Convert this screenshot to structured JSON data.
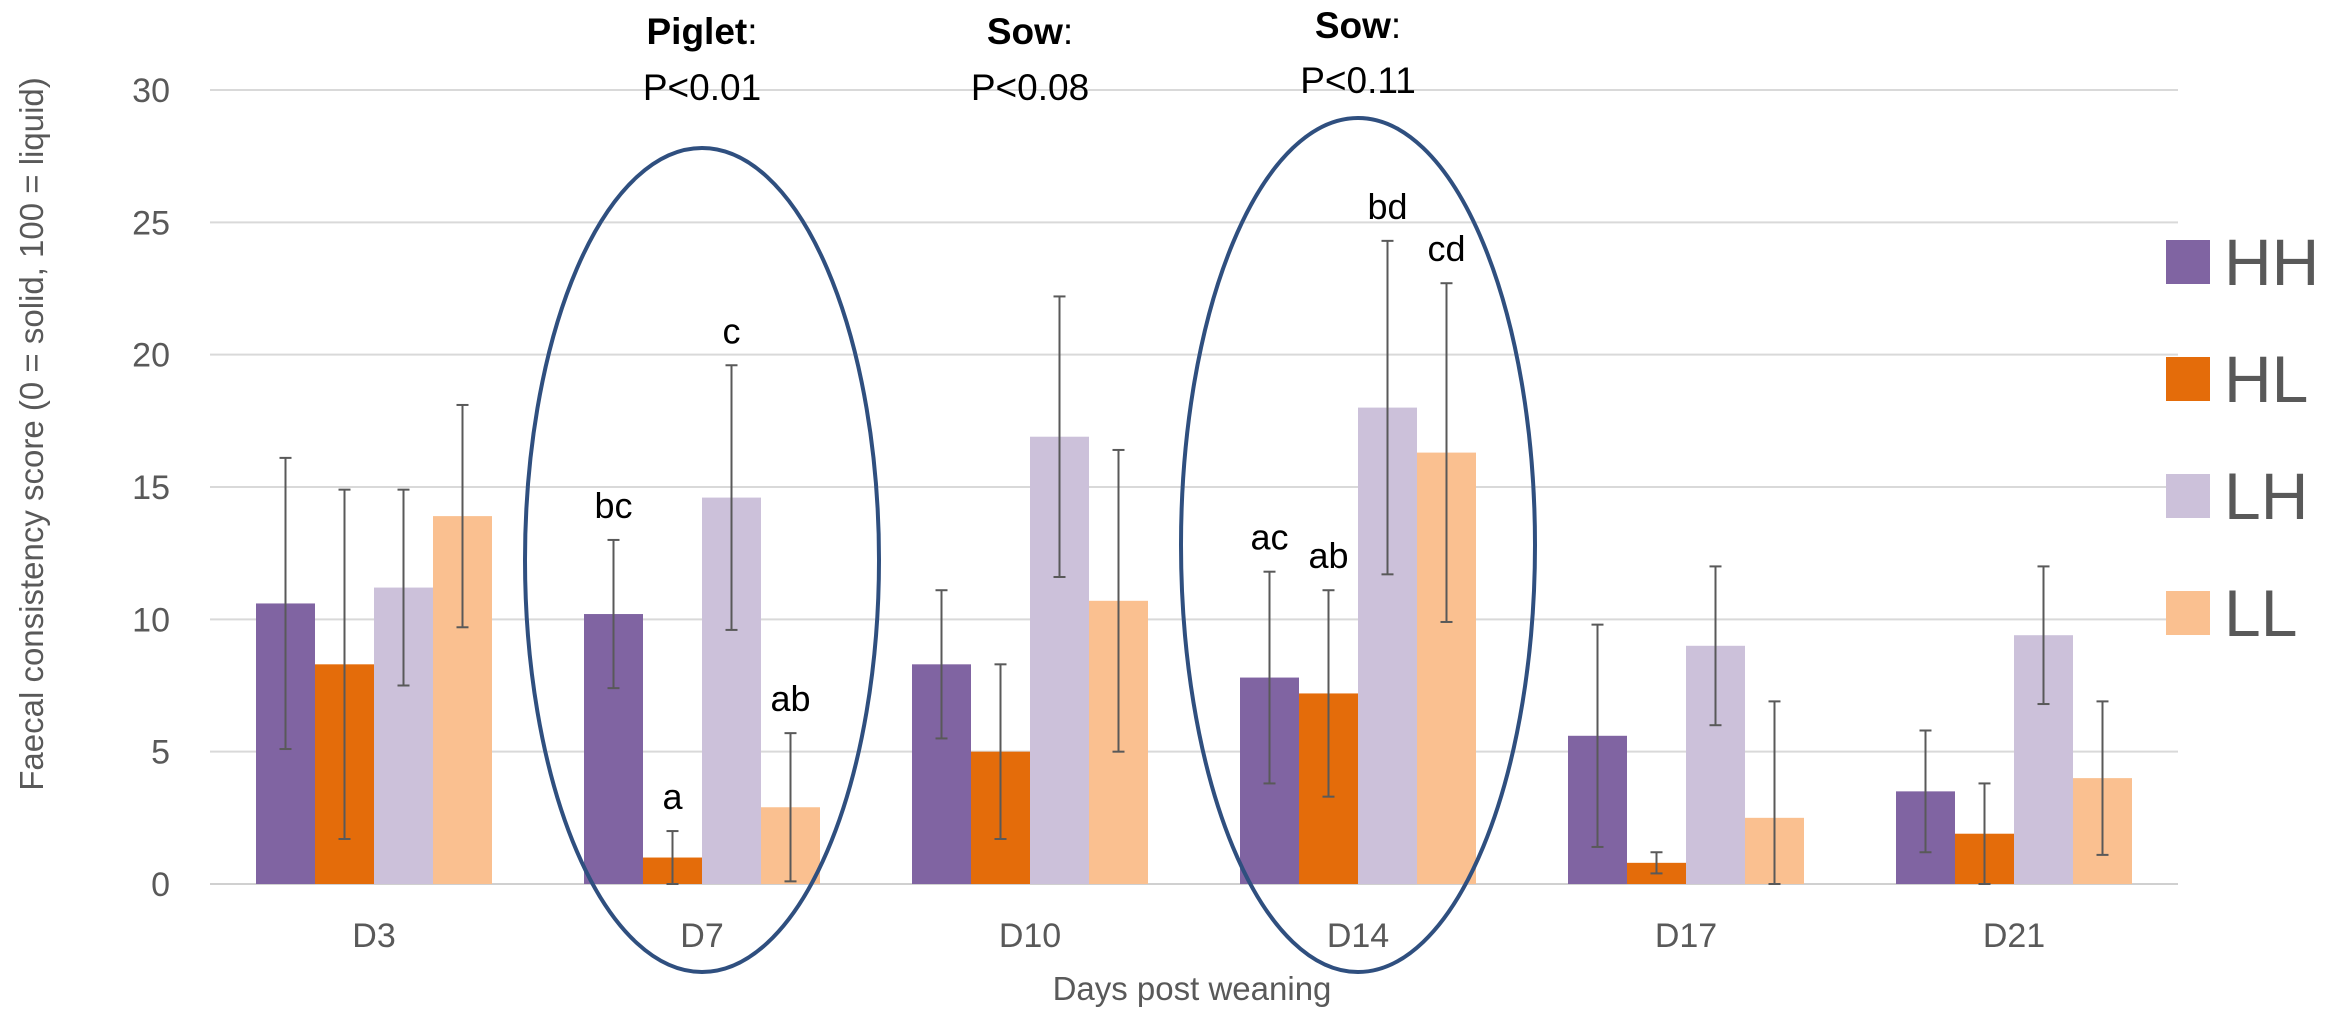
{
  "chart_data": {
    "type": "bar",
    "xlabel": "Days post weaning",
    "ylabel": "Faecal consistency score (0 = solid, 100 = liquid)",
    "ylim": [
      0,
      30
    ],
    "yticks": [
      0,
      5,
      10,
      15,
      20,
      25,
      30
    ],
    "grid": true,
    "legend_position": "right",
    "categories": [
      "D3",
      "D7",
      "D10",
      "D14",
      "D17",
      "D21"
    ],
    "series": [
      {
        "name": "HH",
        "color": "#8064a2",
        "values": [
          10.6,
          10.2,
          8.3,
          7.8,
          5.6,
          3.5
        ],
        "errors": [
          5.5,
          2.8,
          2.8,
          4.0,
          4.2,
          2.3
        ]
      },
      {
        "name": "HL",
        "color": "#e46c0a",
        "values": [
          8.3,
          1.0,
          5.0,
          7.2,
          0.8,
          1.9
        ],
        "errors": [
          6.6,
          1.0,
          3.3,
          3.9,
          0.4,
          1.9
        ]
      },
      {
        "name": "LH",
        "color": "#ccc1da",
        "values": [
          11.2,
          14.6,
          16.9,
          18.0,
          9.0,
          9.4
        ],
        "errors": [
          3.7,
          5.0,
          5.3,
          6.3,
          3.0,
          2.6
        ]
      },
      {
        "name": "LL",
        "color": "#fac090",
        "values": [
          13.9,
          2.9,
          10.7,
          16.3,
          2.5,
          4.0
        ],
        "errors": [
          4.2,
          2.8,
          5.7,
          6.4,
          4.4,
          2.9
        ]
      }
    ],
    "error_bar_color": "#595959",
    "sig_labels": [
      {
        "category": "D7",
        "series": "HH",
        "text": "bc"
      },
      {
        "category": "D7",
        "series": "HL",
        "text": "a"
      },
      {
        "category": "D7",
        "series": "LH",
        "text": "c"
      },
      {
        "category": "D7",
        "series": "LL",
        "text": "ab"
      },
      {
        "category": "D14",
        "series": "HH",
        "text": "ac"
      },
      {
        "category": "D14",
        "series": "HL",
        "text": "ab"
      },
      {
        "category": "D14",
        "series": "LH",
        "text": "bd"
      },
      {
        "category": "D14",
        "series": "LL",
        "text": "cd"
      }
    ],
    "annotations": [
      {
        "category": "D7",
        "label": "Piglet",
        "suffix": ":",
        "p": "P<0.01"
      },
      {
        "category": "D10",
        "label": "Sow",
        "suffix": ":",
        "p": "P<0.08"
      },
      {
        "category": "D14",
        "label": "Sow",
        "suffix": ":",
        "p": "P<0.11"
      }
    ],
    "highlight_color": "#2f4f7f",
    "highlighted_categories": [
      "D7",
      "D14"
    ]
  }
}
